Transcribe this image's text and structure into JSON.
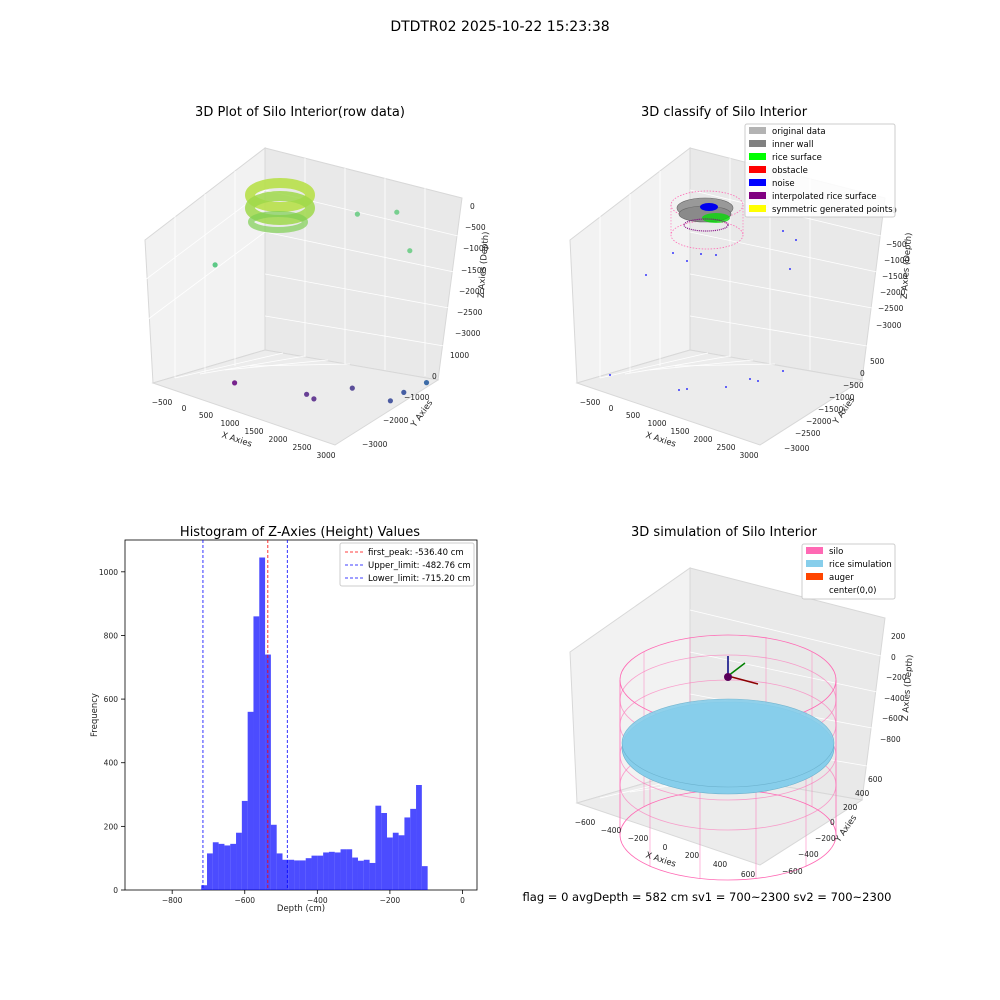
{
  "figure": {
    "suptitle": "DTDTR02 2025-10-22 15:23:38",
    "footer": "flag = 0     avgDepth = 582 cm  sv1 = 700~2300  sv2 = 700~2300"
  },
  "colors": {
    "silo": "#ff69b4",
    "rice": "#87ceeb",
    "auger": "#ff4500",
    "hist": "#0000ff",
    "original": "#b3b3b3",
    "inner_wall": "#808080",
    "rice_surface": "#00ff00",
    "obstacle": "#ff0000",
    "noise": "#0000ff",
    "interpolated": "#800080",
    "symmetric": "#ffff00"
  },
  "chart_data": [
    {
      "type": "scatter",
      "title": "3D Plot of Silo Interior(row data)",
      "xlabel": "X Axies",
      "ylabel": "Y Axies",
      "zlabel": "Z Axies (Depth)",
      "xticks": [
        "−500",
        "0",
        "500",
        "1000",
        "1500",
        "2000",
        "2500",
        "3000"
      ],
      "yticks": [
        "1000",
        "0",
        "−1000",
        "−2000",
        "−3000"
      ],
      "zticks": [
        "0",
        "−500",
        "−1000",
        "−1500",
        "−2000",
        "−2500",
        "−3000"
      ],
      "xlim": [
        -700,
        3200
      ],
      "ylim": [
        -3300,
        1300
      ],
      "zlim": [
        -3300,
        200
      ],
      "points": [
        {
          "x": 450,
          "y": 0,
          "z": -3300,
          "c": "#6a0d83"
        },
        {
          "x": 1700,
          "y": -600,
          "z": -3300,
          "c": "#5a2d8c"
        },
        {
          "x": 1900,
          "y": -500,
          "z": -3300,
          "c": "#5a2d8c"
        },
        {
          "x": 2200,
          "y": -1600,
          "z": -3300,
          "c": "#4b3d90"
        },
        {
          "x": 3000,
          "y": -1600,
          "z": -3300,
          "c": "#3b4d9a"
        },
        {
          "x": 3000,
          "y": -2200,
          "z": -3300,
          "c": "#334f9b"
        },
        {
          "x": 3100,
          "y": -3000,
          "z": -3300,
          "c": "#2b5ea0"
        },
        {
          "x": 400,
          "y": 800,
          "z": -1300,
          "c": "#4cc47a"
        },
        {
          "x": 2400,
          "y": -1400,
          "z": -500,
          "c": "#6ccc85"
        },
        {
          "x": 2900,
          "y": -2100,
          "z": -500,
          "c": "#6ccc85"
        },
        {
          "x": 2800,
          "y": -2900,
          "z": -1300,
          "c": "#6ccc85"
        }
      ]
    },
    {
      "type": "scatter",
      "title": "3D classify of Silo Interior",
      "xlabel": "X Axies",
      "ylabel": "Y Axies",
      "zlabel": "Z Axies (Depth)",
      "xticks": [
        "−500",
        "0",
        "500",
        "1000",
        "1500",
        "2000",
        "2500",
        "3000"
      ],
      "yticks": [
        "500",
        "0",
        "−500",
        "−1000",
        "−1500",
        "−2000",
        "−2500",
        "−3000"
      ],
      "zticks": [
        "0",
        "−500",
        "−1000",
        "−1500",
        "−2000",
        "−2500",
        "−3000"
      ],
      "legend": [
        "original data",
        "inner wall",
        "rice surface",
        "obstacle",
        "noise",
        "interpolated rice surface",
        "symmetric generated points"
      ],
      "legend_placement": "top-right"
    },
    {
      "type": "bar",
      "title": "Histogram of Z-Axies (Height) Values",
      "xlabel": "Depth (cm)",
      "ylabel": "Frequency",
      "xlim": [
        -930,
        40
      ],
      "ylim": [
        0,
        1100
      ],
      "xticks": [
        "−800",
        "−600",
        "−400",
        "−200",
        "0"
      ],
      "yticks": [
        "0",
        "200",
        "400",
        "600",
        "800",
        "1000"
      ],
      "bin_start": -720,
      "bin_width": 16,
      "values": [
        15,
        115,
        150,
        145,
        140,
        145,
        180,
        280,
        560,
        860,
        1045,
        740,
        205,
        115,
        95,
        95,
        93,
        93,
        100,
        108,
        108,
        118,
        120,
        118,
        128,
        128,
        102,
        92,
        95,
        85,
        265,
        242,
        165,
        180,
        172,
        228,
        255,
        330,
        75
      ],
      "vlines": [
        {
          "label": "first_peak: -536.40 cm",
          "x": -536.4,
          "color": "#ff0000"
        },
        {
          "label": "Upper_limit: -482.76 cm",
          "x": -482.76,
          "color": "#0000ff"
        },
        {
          "label": "Lower_limit: -715.20 cm",
          "x": -715.2,
          "color": "#0000ff"
        }
      ],
      "legend_placement": "top-right",
      "grid": false
    },
    {
      "type": "scatter",
      "title": "3D simulation of Silo Interior",
      "xlabel": "X Axies",
      "ylabel": "Y Axies",
      "zlabel": "Z Axies (Depth)",
      "xticks": [
        "−600",
        "−400",
        "−200",
        "0",
        "200",
        "400",
        "600"
      ],
      "yticks": [
        "600",
        "400",
        "200",
        "0",
        "−200",
        "−400",
        "−600"
      ],
      "zticks": [
        "200",
        "0",
        "−200",
        "−400",
        "−600",
        "−800"
      ],
      "legend": [
        "silo",
        "rice simulation",
        "auger",
        "center(0,0)"
      ],
      "legend_placement": "top-right"
    }
  ]
}
